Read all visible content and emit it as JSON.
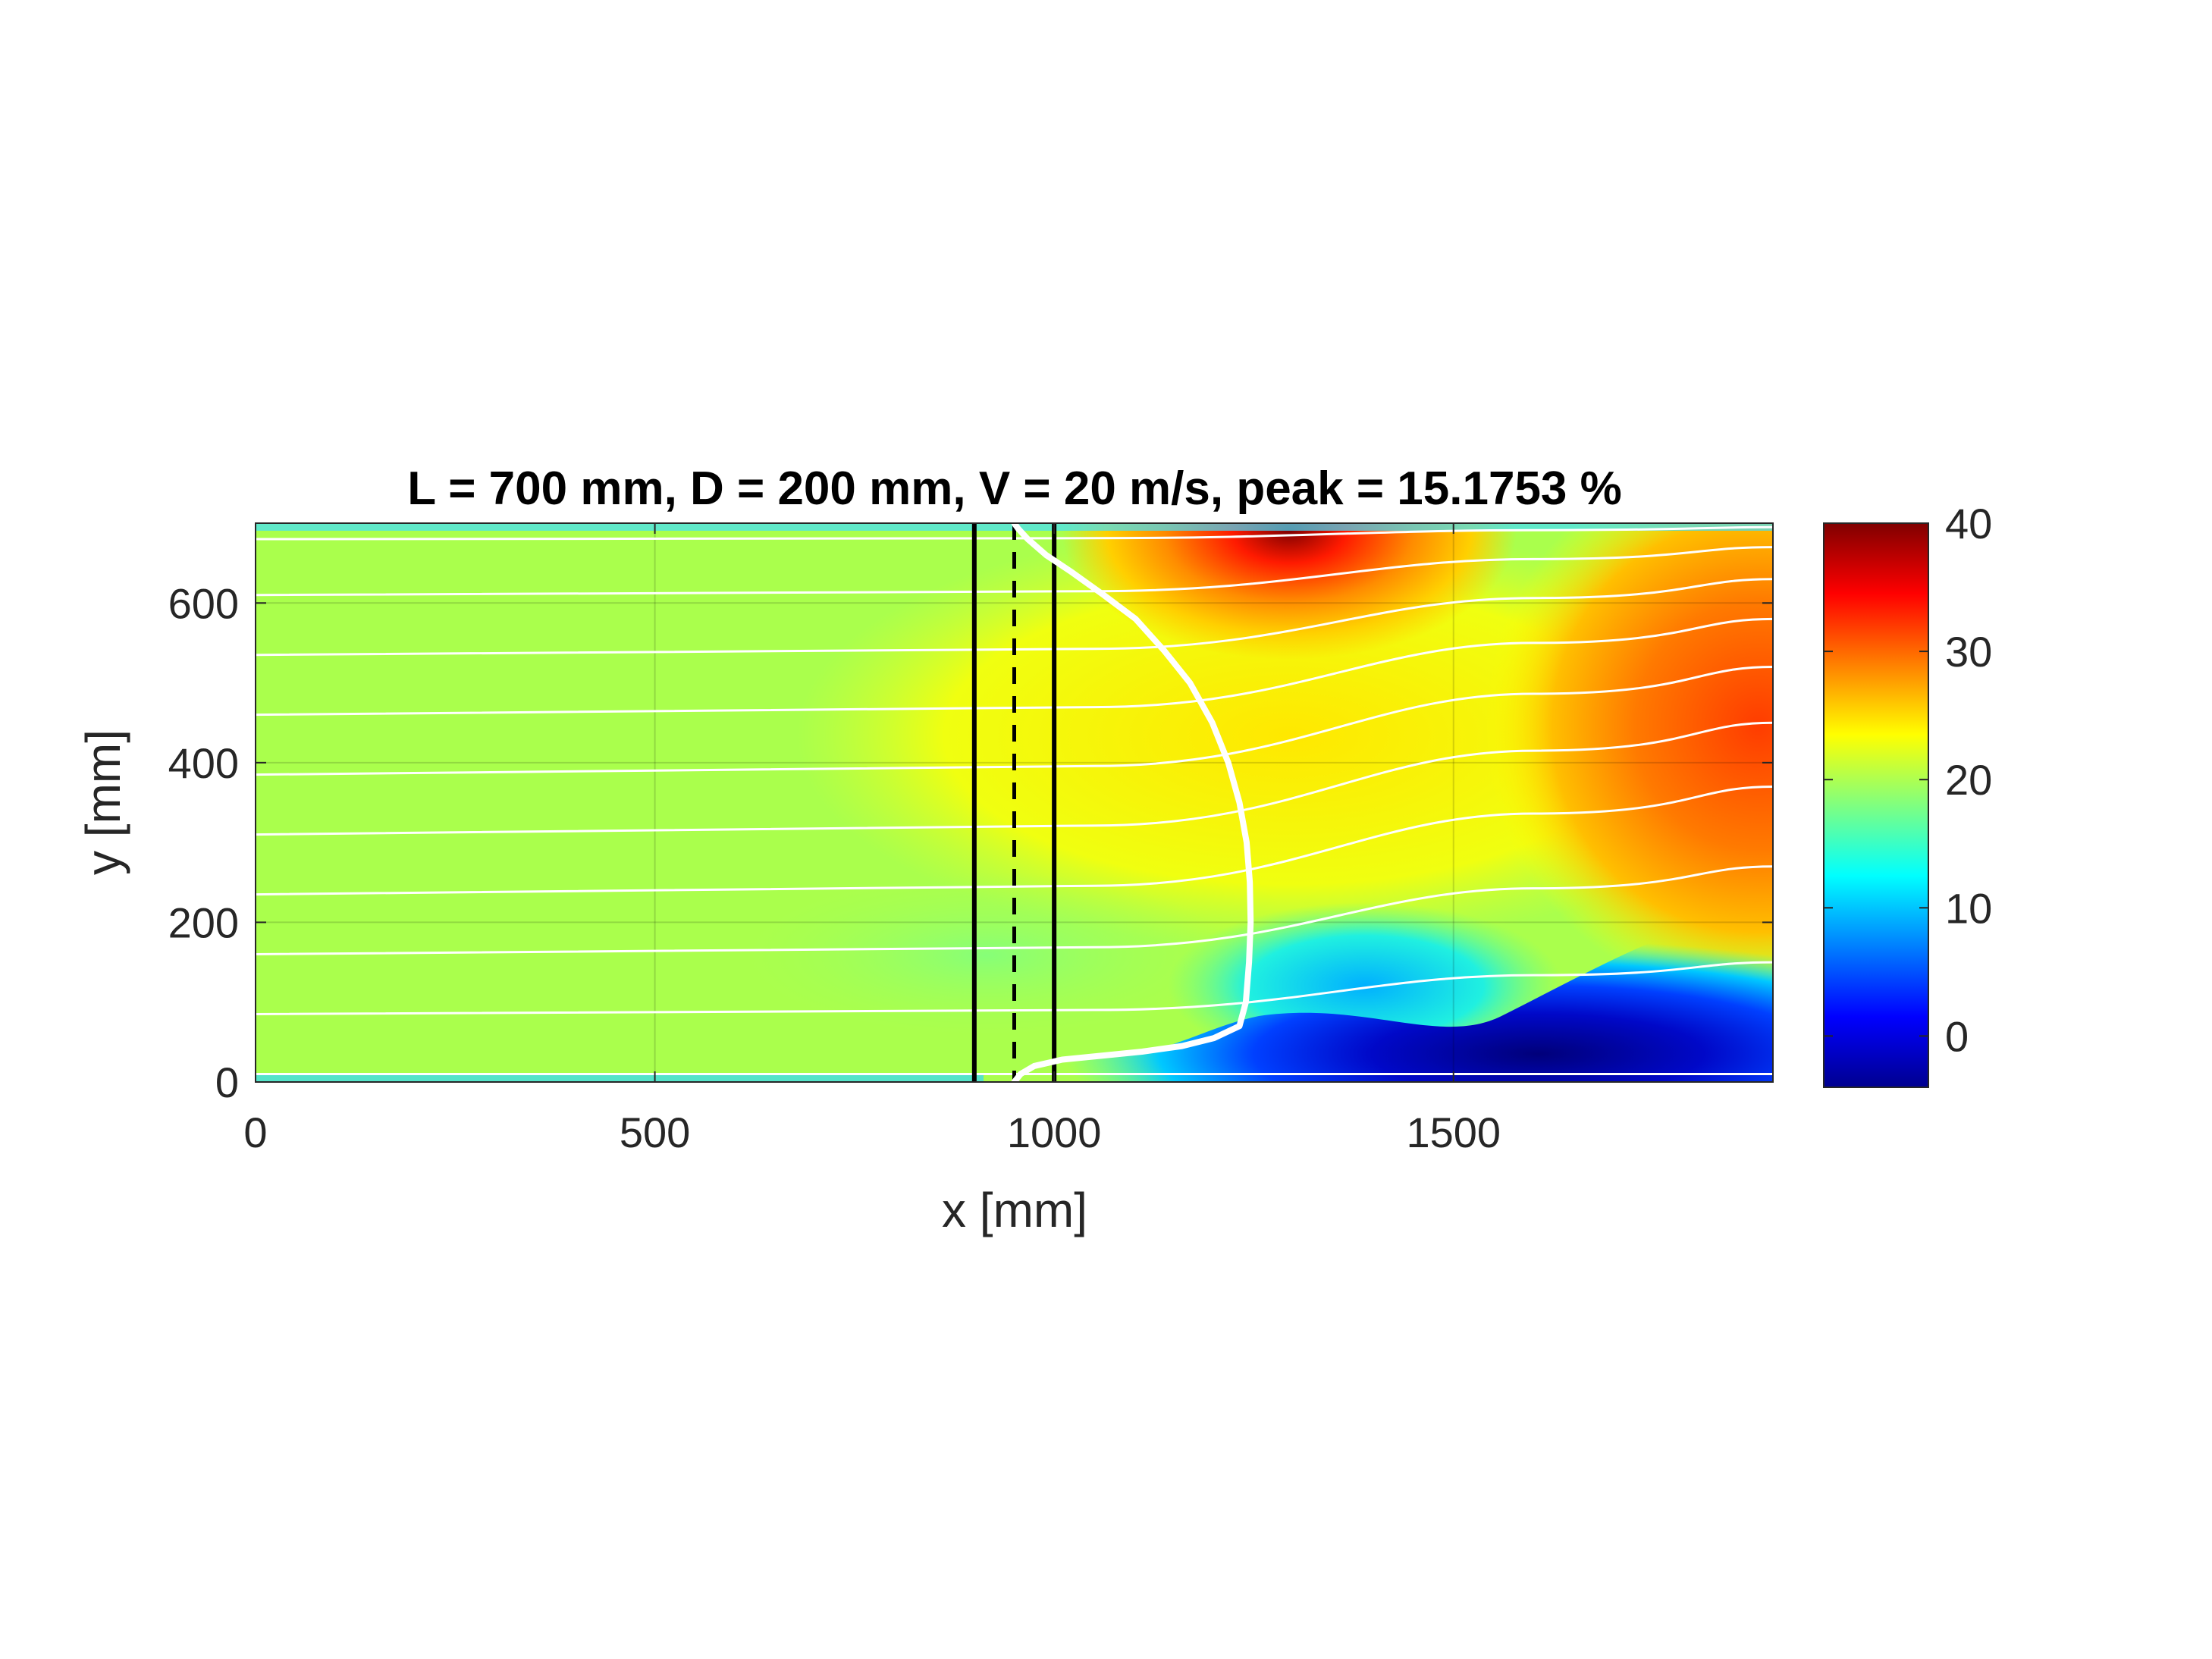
{
  "chart_data": {
    "type": "heatmap",
    "title": "L = 700 mm, D = 200 mm, V = 20 m/s, peak = 15.1753 %",
    "xlabel": "x [mm]",
    "ylabel": "y [mm]",
    "xlim": [
      0,
      1900
    ],
    "ylim": [
      0,
      700
    ],
    "xticks": [
      "0",
      "500",
      "1000",
      "1500"
    ],
    "xtick_values": [
      0,
      500,
      1000,
      1500
    ],
    "yticks": [
      "0",
      "200",
      "400",
      "600"
    ],
    "ytick_values": [
      0,
      200,
      400,
      600
    ],
    "grid": true,
    "colormap": "jet",
    "colorbar": {
      "range": [
        -4,
        40
      ],
      "ticks": [
        "0",
        "10",
        "20",
        "30",
        "40"
      ],
      "tick_values": [
        0,
        10,
        20,
        30,
        40
      ]
    },
    "regions": [
      {
        "description": "freestream",
        "x": [
          0,
          900
        ],
        "y": [
          30,
          690
        ],
        "value": 20.5
      },
      {
        "description": "hot spot near top wall",
        "x": [
          1300,
          1300
        ],
        "y": [
          690,
          690
        ],
        "value": 40
      },
      {
        "description": "low region near bottom right",
        "x": [
          1300,
          1900
        ],
        "y": [
          0,
          150
        ],
        "value": -3
      },
      {
        "description": "wake high region",
        "x": [
          1700,
          1900
        ],
        "y": [
          300,
          650
        ],
        "value": 32
      }
    ],
    "vertical_lines": [
      {
        "x": 900,
        "style": "solid",
        "color": "#000000"
      },
      {
        "x": 950,
        "style": "dashed",
        "color": "#000000"
      },
      {
        "x": 1000,
        "style": "solid",
        "color": "#000000"
      }
    ],
    "profile_curve": {
      "color": "#ffffff",
      "x": [
        950,
        958,
        975,
        1010,
        1060,
        1110,
        1160,
        1200,
        1232,
        1240,
        1244,
        1246,
        1245,
        1241,
        1232,
        1218,
        1198,
        1170,
        1138,
        1102,
        1062,
        1020,
        990,
        967,
        955,
        950
      ],
      "y": [
        0,
        10,
        20,
        28,
        33,
        38,
        45,
        55,
        70,
        100,
        150,
        200,
        250,
        300,
        350,
        400,
        450,
        500,
        540,
        580,
        610,
        640,
        660,
        680,
        693,
        700
      ]
    },
    "streamlines": {
      "color": "#ffffff",
      "start_y": [
        10,
        85,
        160,
        235,
        310,
        385,
        460,
        535,
        610,
        680
      ],
      "end_y": [
        10,
        150,
        270,
        370,
        450,
        520,
        580,
        630,
        670,
        695
      ]
    }
  }
}
